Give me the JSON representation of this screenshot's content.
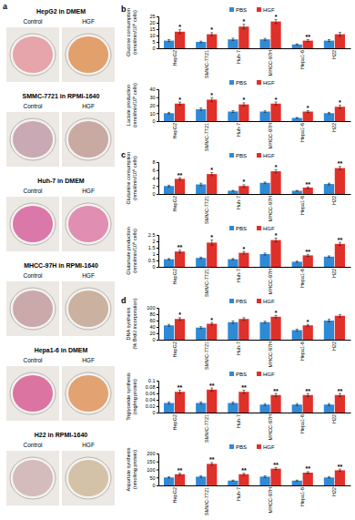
{
  "panel_a": {
    "label": "a",
    "rows": [
      {
        "title": "HepG2 in DMEM",
        "control": "Control",
        "hgf": "HGF",
        "control_color": "#e6a4ab",
        "hgf_color": "#e2a06c"
      },
      {
        "title": "SMMC-7721 in RPMI-1640",
        "control": "Control",
        "hgf": "HGF",
        "control_color": "#c9a9b4",
        "hgf_color": "#c8aaa2"
      },
      {
        "title": "Huh-7 in DMEM",
        "control": "Control",
        "hgf": "HGF",
        "control_color": "#da78aa",
        "hgf_color": "#e08eb2"
      },
      {
        "title": "MHCC-97H in RPMI-1640",
        "control": "Control",
        "hgf": "HGF",
        "control_color": "#cba9ab",
        "hgf_color": "#cbb19f"
      },
      {
        "title": "Hepa1-6 in DMEM",
        "control": "Control",
        "hgf": "HGF",
        "control_color": "#dc74a2",
        "hgf_color": "#e2a271"
      },
      {
        "title": "H22 in RPMI-1640",
        "control": "Control",
        "hgf": "HGF",
        "control_color": "#d4bcbc",
        "hgf_color": "#d4c2a8"
      }
    ]
  },
  "chart_data": [
    {
      "type": "bar",
      "panel": "b",
      "y_label": [
        "Glucose consumption",
        "(nmol/min/10⁶ cells)"
      ],
      "categories": [
        "HepG2",
        "SMMC-7721",
        "Huh-7",
        "MHCC-97H",
        "Hepa1-6",
        "H22"
      ],
      "series": [
        {
          "name": "PBS",
          "color": "#2f8ad6",
          "values": [
            6,
            5,
            7,
            7,
            3,
            6
          ],
          "errors": [
            0.8,
            0.6,
            0.9,
            0.8,
            0.4,
            0.8
          ]
        },
        {
          "name": "HGF",
          "color": "#e0302a",
          "values": [
            13,
            11,
            17,
            21,
            6,
            11
          ],
          "errors": [
            1.5,
            1.2,
            1.8,
            1.6,
            0.8,
            1.5
          ]
        }
      ],
      "annotations": [
        "*",
        "*",
        "*",
        "*",
        "**",
        null
      ],
      "ylim": [
        0,
        25
      ],
      "yticks": [
        0,
        5,
        10,
        15,
        20,
        25
      ],
      "legend": "top"
    },
    {
      "type": "bar",
      "y_label": [
        "Lactate production",
        "(nmol/min/10⁶ cells)"
      ],
      "categories": [
        "HepG2",
        "SMMC-7721",
        "Huh-7",
        "MHCC-97H",
        "Hepa1-6",
        "H22"
      ],
      "series": [
        {
          "name": "PBS",
          "color": "#2f8ad6",
          "values": [
            10,
            15,
            12,
            12,
            4,
            10
          ],
          "errors": [
            1,
            1.5,
            1.2,
            1,
            0.5,
            1
          ]
        },
        {
          "name": "HGF",
          "color": "#e0302a",
          "values": [
            22,
            27,
            21,
            22,
            12,
            18
          ],
          "errors": [
            2,
            2.5,
            2,
            2,
            1.2,
            2
          ]
        }
      ],
      "annotations": [
        "*",
        "*",
        "*",
        "*",
        "*",
        "*"
      ],
      "ylim": [
        0,
        40
      ],
      "yticks": [
        0,
        10,
        20,
        30,
        40
      ],
      "legend": "top"
    },
    {
      "type": "bar",
      "panel": "c",
      "y_label": [
        "Glutamine consumption",
        "(nmol/min/10⁶ cells)"
      ],
      "categories": [
        "HepG2",
        "SMMC-7721",
        "Huh-7",
        "MHCC-97H",
        "Hepa1-6",
        "H22"
      ],
      "series": [
        {
          "name": "PBS",
          "color": "#2f8ad6",
          "values": [
            2,
            2.4,
            0.8,
            2.8,
            0.8,
            2.5
          ],
          "errors": [
            0.2,
            0.3,
            0.1,
            0.2,
            0.1,
            0.2
          ]
        },
        {
          "name": "HGF",
          "color": "#e0302a",
          "values": [
            3.8,
            5,
            2,
            5.7,
            1.6,
            6.5
          ],
          "errors": [
            0.3,
            0.4,
            0.3,
            0.4,
            0.2,
            0.4
          ]
        }
      ],
      "annotations": [
        "**",
        "*",
        "*",
        "*",
        "**",
        "**"
      ],
      "ylim": [
        0,
        8
      ],
      "yticks": [
        0,
        2,
        4,
        6,
        8
      ],
      "legend": "top"
    },
    {
      "type": "bar",
      "y_label": [
        "Glutamate production",
        "(nmol/min/10⁶ cells)"
      ],
      "categories": [
        "HepG2",
        "SMMC-7721",
        "Huh-7",
        "MHCC-97H",
        "Hepa1-6",
        "H22"
      ],
      "series": [
        {
          "name": "PBS",
          "color": "#2f8ad6",
          "values": [
            0.6,
            0.7,
            0.6,
            1.0,
            0.4,
            0.8
          ],
          "errors": [
            0.05,
            0.06,
            0.05,
            0.08,
            0.04,
            0.06
          ]
        },
        {
          "name": "HGF",
          "color": "#e0302a",
          "values": [
            1.2,
            1.9,
            1.1,
            2.1,
            0.9,
            1.8
          ],
          "errors": [
            0.1,
            0.2,
            0.1,
            0.15,
            0.08,
            0.12
          ]
        }
      ],
      "annotations": [
        "**",
        "*",
        "*",
        "*",
        "**",
        "**"
      ],
      "ylim": [
        0,
        2.5
      ],
      "yticks": [
        0,
        0.5,
        1,
        1.5,
        2,
        2.5
      ],
      "legend": "top"
    },
    {
      "type": "bar",
      "panel": "d",
      "y_label": [
        "DNA synthesis",
        "(% BrdU incorporation)"
      ],
      "categories": [
        "HepG2",
        "SMMC-7721",
        "Huh-7",
        "MHCC-97H",
        "Hepa1-6",
        "H22"
      ],
      "series": [
        {
          "name": "PBS",
          "color": "#2f8ad6",
          "values": [
            45,
            38,
            55,
            55,
            30,
            60
          ],
          "errors": [
            3,
            3,
            4,
            3,
            3,
            4
          ]
        },
        {
          "name": "HGF",
          "color": "#e0302a",
          "values": [
            65,
            50,
            65,
            72,
            45,
            75
          ],
          "errors": [
            4,
            4,
            4,
            4,
            3,
            4
          ]
        }
      ],
      "annotations": [
        "*",
        "*",
        null,
        "*",
        "*",
        null
      ],
      "ylim": [
        0,
        100
      ],
      "yticks": [
        0,
        20,
        40,
        60,
        80,
        100
      ],
      "legend": "top"
    },
    {
      "type": "bar",
      "y_label": [
        "Triglyceride synthesis",
        "(mg/mg protein)"
      ],
      "categories": [
        "HepG2",
        "SMMC-7721",
        "Huh-7",
        "MHCC-97H",
        "Hepa1-6",
        "H22"
      ],
      "series": [
        {
          "name": "PBS",
          "color": "#2f8ad6",
          "values": [
            0.03,
            0.03,
            0.03,
            0.025,
            0.025,
            0.025
          ],
          "errors": [
            0.003,
            0.003,
            0.003,
            0.003,
            0.003,
            0.003
          ]
        },
        {
          "name": "HGF",
          "color": "#e0302a",
          "values": [
            0.065,
            0.072,
            0.065,
            0.055,
            0.055,
            0.055
          ],
          "errors": [
            0.005,
            0.005,
            0.005,
            0.005,
            0.005,
            0.005
          ]
        }
      ],
      "annotations": [
        "**",
        "**",
        "**",
        "**",
        "**",
        "**"
      ],
      "ylim": [
        0,
        0.1
      ],
      "yticks": [
        0,
        0.02,
        0.04,
        0.06,
        0.08,
        0.1
      ],
      "legend": "top"
    },
    {
      "type": "bar",
      "y_label": [
        "Aspartate synthesis",
        "(nmol/mg protein)"
      ],
      "categories": [
        "HepG2",
        "SMMC-7721",
        "Huh-7",
        "MHCC-97H",
        "Hepa1-6",
        "H22"
      ],
      "series": [
        {
          "name": "PBS",
          "color": "#2f8ad6",
          "values": [
            50,
            55,
            30,
            55,
            30,
            50
          ],
          "errors": [
            4,
            5,
            3,
            5,
            3,
            4
          ]
        },
        {
          "name": "HGF",
          "color": "#e0302a",
          "values": [
            70,
            135,
            70,
            105,
            80,
            95
          ],
          "errors": [
            6,
            8,
            6,
            7,
            6,
            7
          ]
        }
      ],
      "annotations": [
        "**",
        "**",
        "**",
        "**",
        "**",
        "**"
      ],
      "ylim": [
        0,
        200
      ],
      "yticks": [
        0,
        50,
        100,
        150,
        200
      ],
      "legend": "top"
    }
  ]
}
